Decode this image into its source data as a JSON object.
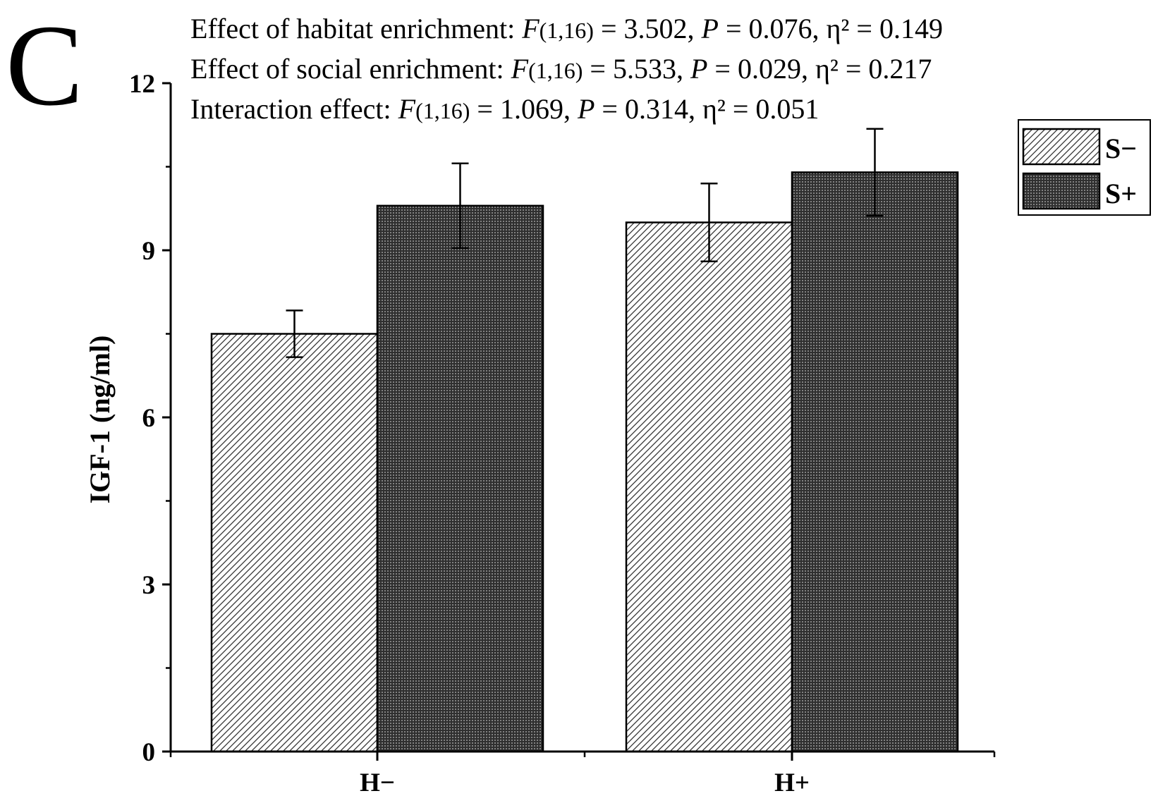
{
  "panel_label": "C",
  "chart_data": {
    "type": "bar",
    "title": "",
    "xlabel": "",
    "ylabel": "IGF-1 (ng/ml)",
    "ylim": [
      0,
      12
    ],
    "yticks": [
      0,
      3,
      6,
      9,
      12
    ],
    "categories": [
      "H−",
      "H+"
    ],
    "series": [
      {
        "name": "S−",
        "pattern": "diagonal-hatch",
        "values": [
          7.5,
          9.5
        ],
        "errors": [
          0.42,
          0.7
        ]
      },
      {
        "name": "S+",
        "pattern": "dense-dots",
        "values": [
          9.8,
          10.4
        ],
        "errors": [
          0.76,
          0.78
        ]
      }
    ],
    "legend": {
      "placement": "top-right",
      "entries": [
        "S−",
        "S+"
      ]
    },
    "annotations": [
      {
        "prefix": "Effect of habitat enrichment: ",
        "stat_letter": "F",
        "df": "(1,16)",
        "f_value": " = 3.502, ",
        "p_letter": "P",
        "p_value": " = 0.076, η² = 0.149"
      },
      {
        "prefix": "Effect of social enrichment: ",
        "stat_letter": "F",
        "df": "(1,16)",
        "f_value": " = 5.533, ",
        "p_letter": "P",
        "p_value": " = 0.029, η² = 0.217"
      },
      {
        "prefix": "Interaction effect: ",
        "stat_letter": "F",
        "df": "(1,16)",
        "f_value": " = 1.069, ",
        "p_letter": "P",
        "p_value": " = 0.314, η² = 0.051"
      }
    ]
  },
  "colors": {
    "axis": "#000000",
    "hatch_line": "#333333",
    "dots_bg": "#2f2f2f",
    "dots_fg": "#bdbdbd",
    "background": "#ffffff"
  }
}
